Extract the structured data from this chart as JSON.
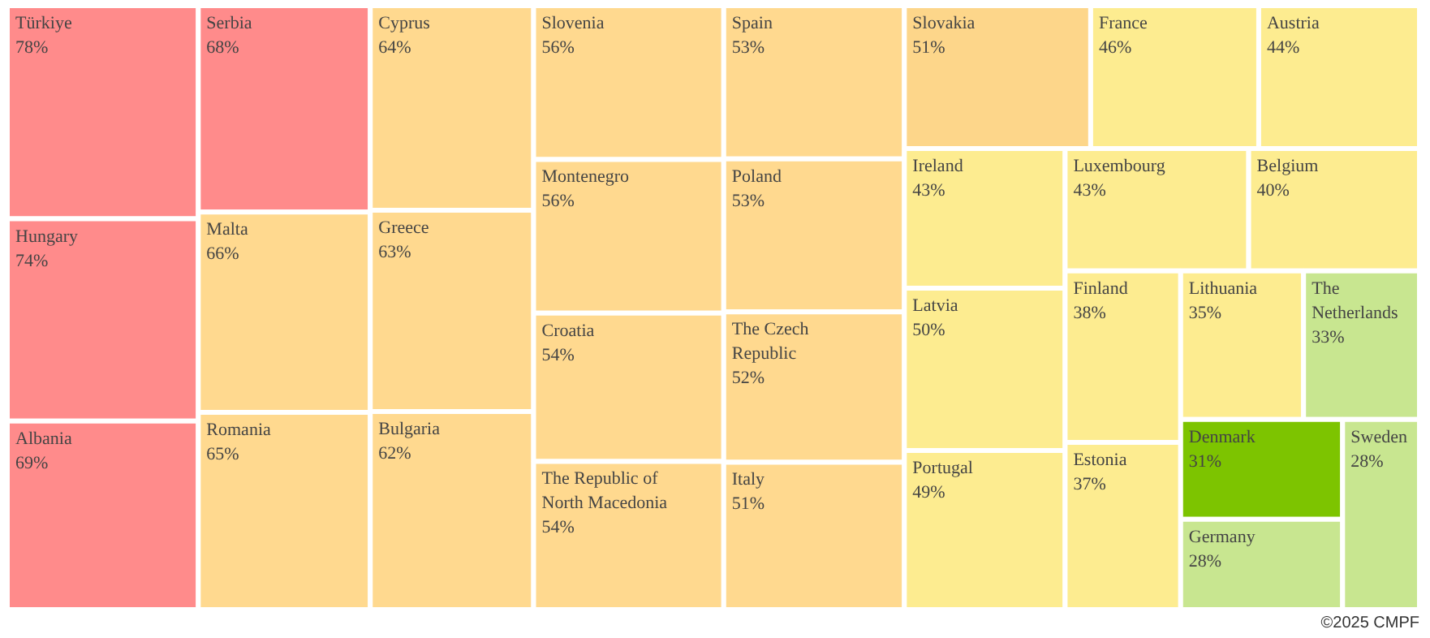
{
  "chart_data": {
    "type": "other",
    "categories": [
      "Türkiye",
      "Hungary",
      "Albania",
      "Serbia",
      "Malta",
      "Romania",
      "Cyprus",
      "Greece",
      "Bulgaria",
      "Slovenia",
      "Montenegro",
      "Croatia",
      "The Republic of North Macedonia",
      "Spain",
      "Poland",
      "The Czech Republic",
      "Italy",
      "Slovakia",
      "France",
      "Austria",
      "Ireland",
      "Latvia",
      "Portugal",
      "Luxembourg",
      "Belgium",
      "Finland",
      "Estonia",
      "Lithuania",
      "The Netherlands",
      "Denmark",
      "Germany",
      "Sweden"
    ],
    "values": [
      78,
      74,
      69,
      68,
      66,
      65,
      64,
      63,
      62,
      56,
      56,
      54,
      54,
      53,
      53,
      52,
      51,
      51,
      46,
      44,
      43,
      50,
      49,
      43,
      40,
      38,
      37,
      35,
      33,
      31,
      28,
      28
    ],
    "value_labels": [
      "78%",
      "74%",
      "69%",
      "68%",
      "66%",
      "65%",
      "64%",
      "63%",
      "62%",
      "56%",
      "56%",
      "54%",
      "54%",
      "53%",
      "53%",
      "52%",
      "51%",
      "51%",
      "46%",
      "44%",
      "43%",
      "50%",
      "49%",
      "43%",
      "40%",
      "38%",
      "37%",
      "35%",
      "33%",
      "31%",
      "28%",
      "28%"
    ],
    "colors": [
      "#ff8b8b",
      "#ff8b8b",
      "#ff8b8b",
      "#ff8b8b",
      "#ffd98f",
      "#ffd98f",
      "#ffd98f",
      "#ffd98f",
      "#ffd98f",
      "#ffd98f",
      "#ffd98f",
      "#ffd98f",
      "#ffd98f",
      "#ffd98f",
      "#ffd98f",
      "#ffd98f",
      "#ffd98f",
      "#fdd68a",
      "#fdec90",
      "#fdec90",
      "#fdec90",
      "#fdec90",
      "#fdec90",
      "#fdec90",
      "#fdec90",
      "#fdec90",
      "#fdec90",
      "#fdec90",
      "#c8e690",
      "#7dc400",
      "#c8e690",
      "#c8e690"
    ],
    "annotations": [
      "©2025 CMPF"
    ]
  }
}
